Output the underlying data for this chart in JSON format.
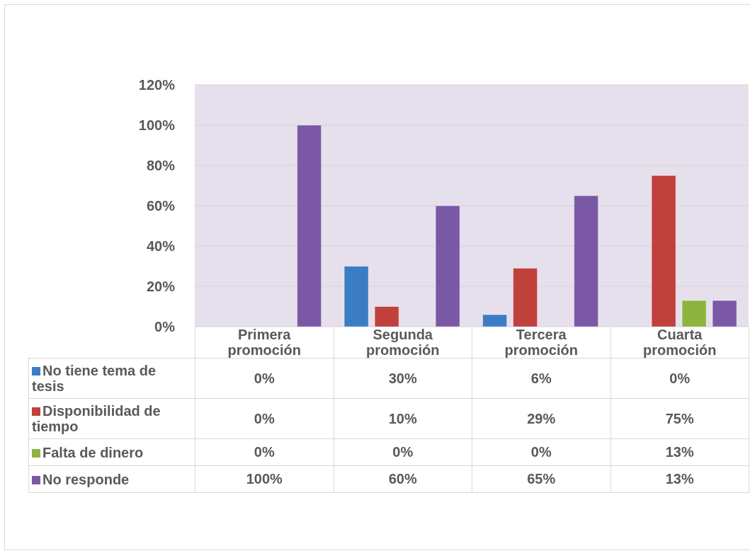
{
  "chart_data": {
    "type": "bar",
    "categories": [
      "Primera promoción",
      "Segunda promoción",
      "Tercera promoción",
      "Cuarta promoción"
    ],
    "series": [
      {
        "name": "No tiene tema de tesis",
        "color": "#3b7dc4",
        "values": [
          0,
          30,
          6,
          0
        ],
        "value_labels": [
          "0%",
          "30%",
          "6%",
          "0%"
        ]
      },
      {
        "name": "Disponibilidad de tiempo",
        "color": "#c0403c",
        "values": [
          0,
          10,
          29,
          75
        ],
        "value_labels": [
          "0%",
          "10%",
          "29%",
          "75%"
        ]
      },
      {
        "name": "Falta de dinero",
        "color": "#8db43e",
        "values": [
          0,
          0,
          0,
          13
        ],
        "value_labels": [
          "0%",
          "0%",
          "0%",
          "13%"
        ]
      },
      {
        "name": "No responde",
        "color": "#7b58a6",
        "values": [
          100,
          60,
          65,
          13
        ],
        "value_labels": [
          "100%",
          "60%",
          "65%",
          "13%"
        ]
      }
    ],
    "ylim": [
      0,
      120
    ],
    "yticks": [
      {
        "value": 0,
        "label": "0%"
      },
      {
        "value": 20,
        "label": "20%"
      },
      {
        "value": 40,
        "label": "40%"
      },
      {
        "value": 60,
        "label": "60%"
      },
      {
        "value": 80,
        "label": "80%"
      },
      {
        "value": 100,
        "label": "100%"
      },
      {
        "value": 120,
        "label": "120%"
      }
    ],
    "grid": "y",
    "legend": "bottom"
  }
}
